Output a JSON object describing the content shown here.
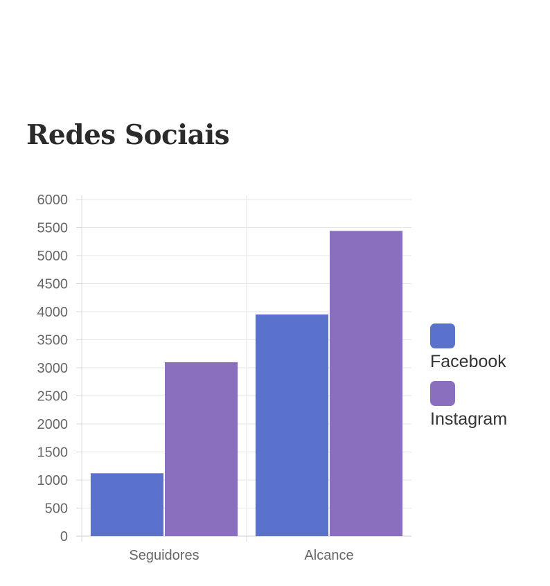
{
  "card": {
    "title": "Redes Sociais"
  },
  "chart_data": {
    "type": "bar",
    "title": "",
    "xlabel": "",
    "ylabel": "",
    "categories": [
      "Seguidores",
      "Alcance"
    ],
    "series": [
      {
        "name": "Facebook",
        "color": "#5a72cc",
        "values": [
          1120,
          3950
        ]
      },
      {
        "name": "Instagram",
        "color": "#8a6fbf",
        "values": [
          3100,
          5440
        ]
      }
    ],
    "ylim": [
      0,
      6000
    ],
    "yticks": [
      0,
      500,
      1000,
      1500,
      2000,
      2500,
      3000,
      3500,
      4000,
      4500,
      5000,
      5500,
      6000
    ],
    "grid": true,
    "legend_position": "right"
  }
}
